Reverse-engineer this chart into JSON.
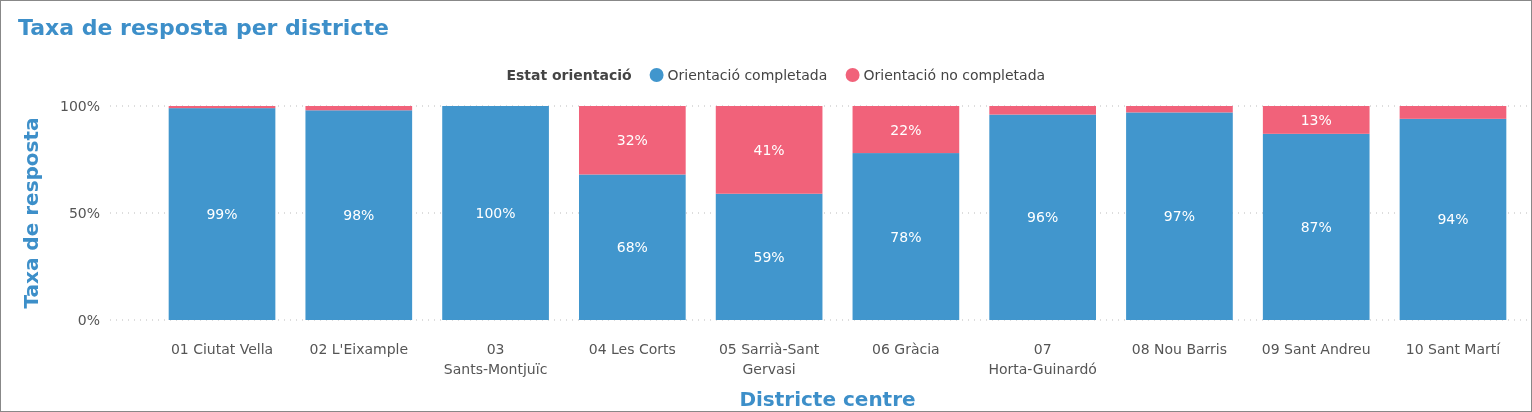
{
  "chart_data": {
    "type": "bar",
    "stacked": true,
    "title": "Taxa de resposta per districte",
    "xlabel": "Districte centre",
    "ylabel": "Taxa de resposta",
    "legend_title": "Estat orientació",
    "legend": "top",
    "grid": "y",
    "categories": [
      "01 Ciutat Vella",
      "02 L'Eixample",
      "03 Sants-Montjuïc",
      "04 Les Corts",
      "05 Sarrià-Sant Gervasi",
      "06 Gràcia",
      "07 Horta-Guinardó",
      "08 Nou Barris",
      "09 Sant Andreu",
      "10 Sant Martí"
    ],
    "ylim": [
      0,
      100
    ],
    "yticks": [
      {
        "value": 0,
        "label": "0%"
      },
      {
        "value": 50,
        "label": "50%"
      },
      {
        "value": 100,
        "label": "100%"
      }
    ],
    "series": [
      {
        "name": "Orientació completada",
        "color": "#4196cd",
        "values": [
          99,
          98,
          100,
          68,
          59,
          78,
          96,
          97,
          87,
          94
        ],
        "value_labels": [
          "99%",
          "98%",
          "100%",
          "68%",
          "59%",
          "78%",
          "96%",
          "97%",
          "87%",
          "94%"
        ]
      },
      {
        "name": "Orientació no completada",
        "color": "#f1627a",
        "values": [
          1,
          2,
          0,
          32,
          41,
          22,
          4,
          3,
          13,
          6
        ],
        "value_labels": [
          null,
          null,
          null,
          "32%",
          "41%",
          "22%",
          null,
          null,
          "13%",
          null
        ]
      }
    ]
  }
}
